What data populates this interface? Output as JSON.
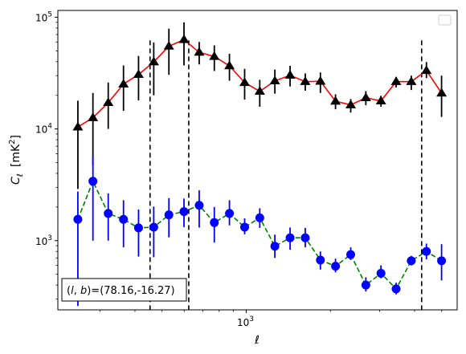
{
  "chart_data": {
    "type": "scatter",
    "xlabel": "ℓ",
    "ylabel": "C",
    "ylabel_sub": "ℓ",
    "ylabel_unit_prefix": "[mK",
    "ylabel_unit_sup": "2",
    "ylabel_unit_suffix": "]",
    "x_scale": "log",
    "y_scale": "log",
    "xlim": [
      212,
      5680
    ],
    "ylim": [
      240,
      115000
    ],
    "x_major_ticks": [
      {
        "value": 1000,
        "base": "10",
        "exp": "3"
      }
    ],
    "y_major_ticks": [
      {
        "value": 1000,
        "base": "10",
        "exp": "3"
      },
      {
        "value": 10000,
        "base": "10",
        "exp": "4"
      },
      {
        "value": 100000,
        "base": "10",
        "exp": "5"
      }
    ],
    "vlines": [
      453,
      623,
      4240
    ],
    "annotation": {
      "prefix": "(",
      "italic_l": "l",
      "sep": ", ",
      "italic_b": "b",
      "suffix": ")=(78.16,-16.27)"
    },
    "legend": {
      "placement": "upper right",
      "entries": []
    },
    "series": [
      {
        "color": "#ff0000",
        "marker": "triangle",
        "marker_color": "#000000",
        "errorbar_color": "#000000",
        "linestyle": "solid",
        "x": [
          250,
          283,
          321,
          364,
          412,
          467,
          529,
          599,
          679,
          769,
          871,
          987,
          1118,
          1266,
          1435,
          1626,
          1842,
          2086,
          2364,
          2678,
          3033,
          3436,
          3893,
          4410,
          4996
        ],
        "y": [
          10400,
          12600,
          17200,
          25200,
          30700,
          39800,
          55000,
          63000,
          48500,
          44500,
          36700,
          26000,
          21700,
          26900,
          30200,
          26500,
          26700,
          17700,
          16400,
          19000,
          17800,
          26500,
          26500,
          33300,
          20900
        ],
        "y_low": [
          2900,
          4700,
          10000,
          14500,
          18000,
          20000,
          30500,
          37000,
          37800,
          33000,
          27000,
          18300,
          15800,
          20700,
          24000,
          22000,
          21000,
          15000,
          14000,
          16300,
          15800,
          23500,
          22300,
          28500,
          12800
        ],
        "y_high": [
          17900,
          21000,
          26000,
          37000,
          45000,
          59500,
          79000,
          90000,
          60000,
          56000,
          47000,
          34500,
          27500,
          34000,
          36700,
          31400,
          32000,
          20400,
          18500,
          21800,
          19800,
          29200,
          30000,
          39700,
          30000
        ]
      },
      {
        "color": "#008000",
        "marker": "circle",
        "marker_color": "#0000ff",
        "errorbar_color": "#0000ff",
        "linestyle": "dashed",
        "x": [
          250,
          283,
          321,
          364,
          412,
          467,
          529,
          599,
          679,
          769,
          871,
          987,
          1118,
          1266,
          1435,
          1626,
          1842,
          2086,
          2364,
          2678,
          3033,
          3436,
          3893,
          4410,
          4996
        ],
        "y": [
          1550,
          3400,
          1750,
          1550,
          1300,
          1320,
          1700,
          1820,
          2070,
          1450,
          1750,
          1320,
          1600,
          890,
          1060,
          1060,
          670,
          590,
          750,
          400,
          510,
          370,
          660,
          800,
          660
        ],
        "y_low": [
          260,
          1000,
          1000,
          870,
          720,
          710,
          1070,
          1320,
          1310,
          960,
          1370,
          1140,
          1300,
          700,
          830,
          870,
          550,
          520,
          670,
          350,
          460,
          330,
          600,
          680,
          440
        ],
        "y_high": [
          2750,
          5800,
          2650,
          2300,
          1900,
          2020,
          2400,
          2380,
          2820,
          2000,
          2300,
          1580,
          1950,
          1130,
          1310,
          1300,
          800,
          690,
          870,
          470,
          600,
          420,
          730,
          940,
          930
        ]
      }
    ]
  }
}
